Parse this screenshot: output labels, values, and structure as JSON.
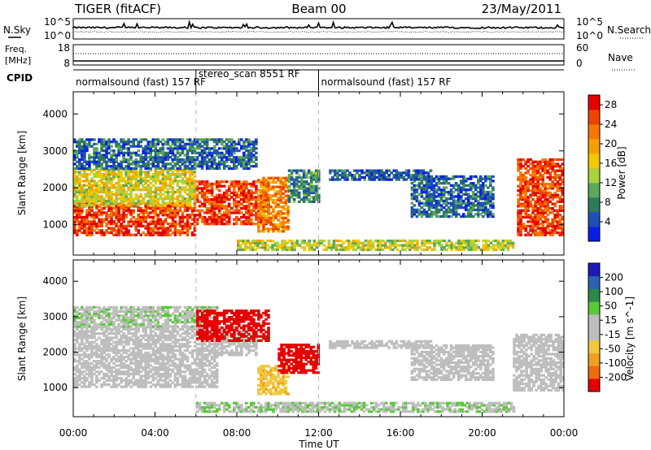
{
  "header": {
    "radar": "TIGER (fitACF)",
    "beam": "Beam 00",
    "date": "23/May/2011"
  },
  "noise_panel": {
    "left_label": "N.Sky",
    "right_label": "N.Search",
    "left_ticks": [
      "10^5",
      "10^0"
    ],
    "right_ticks": [
      "10^5",
      "10^0"
    ]
  },
  "freq_panel": {
    "left_label_1": "Freq.",
    "left_label_2": "[MHz]",
    "right_label": "Nave",
    "left_ticks": [
      "18",
      "8"
    ],
    "right_ticks": [
      "60",
      "0"
    ]
  },
  "cpid": {
    "label": "CPID",
    "segments": [
      {
        "text": "normalsound (fast) 157 RF",
        "start_hour": 0
      },
      {
        "text": "stereo_scan 8551 RF",
        "start_hour": 6
      },
      {
        "text": "normalsound (fast) 157 RF",
        "start_hour": 12
      }
    ]
  },
  "colors": {
    "power_scale": [
      "#0a1fe6",
      "#1e4fb8",
      "#2e7a5a",
      "#5aa85a",
      "#a8d23c",
      "#f5c800",
      "#f5a000",
      "#f57800",
      "#ee4400",
      "#e60000"
    ],
    "velocity_scale": [
      "#1a1ab4",
      "#2a62b0",
      "#2a8a4a",
      "#5ac83a",
      "#bebebe",
      "#bebebe",
      "#f0c83c",
      "#f0a020",
      "#f06a10",
      "#e60000"
    ]
  },
  "chart_data": [
    {
      "type": "heatmap",
      "panel": "power",
      "ylabel": "Slant Range [km]",
      "xlabel": "Time UT",
      "xlim": [
        0,
        24
      ],
      "ylim": [
        180,
        4600
      ],
      "x_tick_labels": [
        "00:00",
        "04:00",
        "08:00",
        "12:00",
        "16:00",
        "20:00",
        "00:00"
      ],
      "x_ticks": [
        0,
        4,
        8,
        12,
        16,
        20,
        24
      ],
      "y_ticks": [
        1000,
        2000,
        3000,
        4000
      ],
      "y_tick_labels": [
        "1000",
        "2000",
        "3000",
        "4000"
      ],
      "colorbar": {
        "label": "Power [dB]",
        "ticks": [
          "4",
          "8",
          "12",
          "16",
          "20",
          "24",
          "28"
        ],
        "range": [
          0,
          30
        ]
      },
      "regions": [
        {
          "t0": 0.0,
          "t1": 6.0,
          "r0": 700,
          "r1": 1600,
          "value": 26
        },
        {
          "t0": 0.0,
          "t1": 6.0,
          "r0": 1500,
          "r1": 2500,
          "value": 16
        },
        {
          "t0": 0.0,
          "t1": 9.0,
          "r0": 2500,
          "r1": 3300,
          "value": 6
        },
        {
          "t0": 6.0,
          "t1": 9.5,
          "r0": 1000,
          "r1": 2200,
          "value": 26
        },
        {
          "t0": 9.0,
          "t1": 10.5,
          "r0": 800,
          "r1": 2300,
          "value": 22
        },
        {
          "t0": 10.5,
          "t1": 12.0,
          "r0": 1600,
          "r1": 2500,
          "value": 8
        },
        {
          "t0": 12.5,
          "t1": 17.5,
          "r0": 2200,
          "r1": 2500,
          "value": 5
        },
        {
          "t0": 16.5,
          "t1": 20.5,
          "r0": 1200,
          "r1": 2300,
          "value": 6
        },
        {
          "t0": 8.0,
          "t1": 21.5,
          "r0": 300,
          "r1": 600,
          "value": 14
        },
        {
          "t0": 21.7,
          "t1": 24.0,
          "r0": 700,
          "r1": 2800,
          "value": 26
        }
      ]
    },
    {
      "type": "heatmap",
      "panel": "velocity",
      "ylabel": "Slant Range [km]",
      "xlabel": "Time UT",
      "xlim": [
        0,
        24
      ],
      "ylim": [
        180,
        4600
      ],
      "x_tick_labels": [
        "00:00",
        "04:00",
        "08:00",
        "12:00",
        "16:00",
        "20:00",
        "00:00"
      ],
      "x_ticks": [
        0,
        4,
        8,
        12,
        16,
        20,
        24
      ],
      "y_ticks": [
        1000,
        2000,
        3000,
        4000
      ],
      "y_tick_labels": [
        "1000",
        "2000",
        "3000",
        "4000"
      ],
      "colorbar": {
        "label": "Velocity [m s^-1]",
        "ticks": [
          "200",
          "100",
          "50",
          "15",
          "-15",
          "-50",
          "-100",
          "-200"
        ],
        "range": [
          -250,
          250
        ]
      },
      "regions": [
        {
          "t0": 0.0,
          "t1": 7.0,
          "r0": 1000,
          "r1": 1900,
          "value": 0
        },
        {
          "t0": 0.0,
          "t1": 9.0,
          "r0": 1900,
          "r1": 2700,
          "value": 0
        },
        {
          "t0": 0.0,
          "t1": 7.0,
          "r0": 2700,
          "r1": 3300,
          "value": 40
        },
        {
          "t0": 6.0,
          "t1": 9.5,
          "r0": 2300,
          "r1": 3200,
          "value": -250
        },
        {
          "t0": 9.0,
          "t1": 10.5,
          "r0": 800,
          "r1": 1600,
          "value": -80
        },
        {
          "t0": 10.0,
          "t1": 12.0,
          "r0": 1400,
          "r1": 2200,
          "value": -250
        },
        {
          "t0": 12.5,
          "t1": 17.5,
          "r0": 2100,
          "r1": 2300,
          "value": -10
        },
        {
          "t0": 16.5,
          "t1": 20.5,
          "r0": 1200,
          "r1": 2200,
          "value": 0
        },
        {
          "t0": 6.0,
          "t1": 21.5,
          "r0": 300,
          "r1": 600,
          "value": 40
        },
        {
          "t0": 21.5,
          "t1": 24.0,
          "r0": 900,
          "r1": 2500,
          "value": 20
        }
      ]
    }
  ]
}
